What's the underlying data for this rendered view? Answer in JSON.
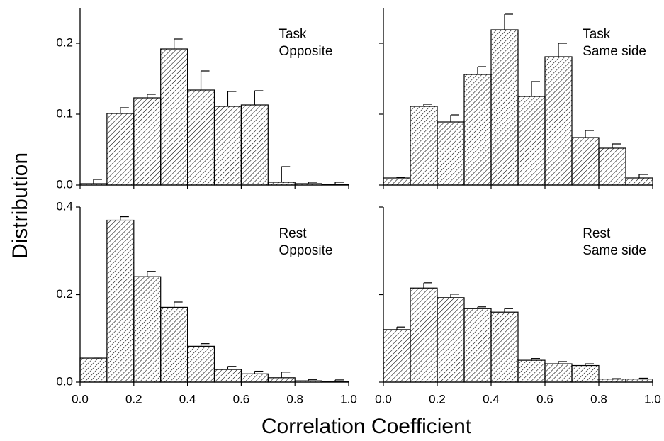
{
  "xlabel": "Correlation Coefficient",
  "ylabel": "Distribution",
  "chart_data": [
    {
      "type": "histogram",
      "annotation": [
        "Task",
        "Opposite"
      ],
      "bins": [
        0,
        0.1,
        0.2,
        0.3,
        0.4,
        0.5,
        0.6,
        0.7,
        0.8,
        0.9,
        1.0
      ],
      "values": [
        0.002,
        0.101,
        0.123,
        0.192,
        0.134,
        0.111,
        0.113,
        0.004,
        0.002,
        0.001
      ],
      "errors": [
        0.006,
        0.008,
        0.005,
        0.014,
        0.027,
        0.021,
        0.02,
        0.022,
        0.002,
        0.003
      ],
      "xlim": [
        0,
        1
      ],
      "ylim": [
        0,
        0.25
      ],
      "xticks": [
        {
          "value": 0,
          "label": "0.0"
        },
        0.2,
        0.4,
        0.6,
        0.8,
        {
          "value": 1,
          "label": "1.0"
        }
      ],
      "yticks": [
        {
          "value": 0,
          "label": "0.0"
        },
        0.1,
        0.2
      ],
      "show_xtick_labels": false,
      "show_ytick_labels": true
    },
    {
      "type": "histogram",
      "annotation": [
        "Task",
        "Same side"
      ],
      "bins": [
        0,
        0.1,
        0.2,
        0.3,
        0.4,
        0.5,
        0.6,
        0.7,
        0.8,
        0.9,
        1.0
      ],
      "values": [
        0.01,
        0.111,
        0.089,
        0.156,
        0.219,
        0.125,
        0.181,
        0.067,
        0.052,
        0.01
      ],
      "errors": [
        0.001,
        0.003,
        0.01,
        0.011,
        0.022,
        0.021,
        0.019,
        0.01,
        0.006,
        0.005
      ],
      "xlim": [
        0,
        1
      ],
      "ylim": [
        0,
        0.25
      ],
      "xticks": [
        {
          "value": 0,
          "label": "0.0"
        },
        0.2,
        0.4,
        0.6,
        0.8,
        {
          "value": 1,
          "label": "1.0"
        }
      ],
      "yticks": [
        {
          "value": 0,
          "label": "0.0"
        },
        0.1,
        0.2
      ],
      "show_xtick_labels": false,
      "show_ytick_labels": false
    },
    {
      "type": "histogram",
      "annotation": [
        "Rest",
        "Opposite"
      ],
      "bins": [
        0,
        0.1,
        0.2,
        0.3,
        0.4,
        0.5,
        0.6,
        0.7,
        0.8,
        0.9,
        1.0
      ],
      "values": [
        0.055,
        0.37,
        0.241,
        0.171,
        0.082,
        0.029,
        0.019,
        0.01,
        0.003,
        0.002
      ],
      "errors": [
        0,
        0.008,
        0.012,
        0.012,
        0.006,
        0.007,
        0.006,
        0.013,
        0.003,
        0.003
      ],
      "xlim": [
        0,
        1
      ],
      "ylim": [
        0,
        0.4
      ],
      "xticks": [
        {
          "value": 0,
          "label": "0.0"
        },
        0.2,
        0.4,
        0.6,
        0.8,
        {
          "value": 1,
          "label": "1.0"
        }
      ],
      "yticks": [
        {
          "value": 0,
          "label": "0.0"
        },
        0.2,
        0.4
      ],
      "show_xtick_labels": true,
      "show_ytick_labels": true
    },
    {
      "type": "histogram",
      "annotation": [
        "Rest",
        "Same side"
      ],
      "bins": [
        0,
        0.1,
        0.2,
        0.3,
        0.4,
        0.5,
        0.6,
        0.7,
        0.8,
        0.9,
        1.0
      ],
      "values": [
        0.12,
        0.215,
        0.193,
        0.168,
        0.16,
        0.05,
        0.042,
        0.038,
        0.007,
        0.007
      ],
      "errors": [
        0.006,
        0.012,
        0.008,
        0.004,
        0.008,
        0.004,
        0.005,
        0.004,
        0.001,
        0.002
      ],
      "xlim": [
        0,
        1
      ],
      "ylim": [
        0,
        0.4
      ],
      "xticks": [
        {
          "value": 0,
          "label": "0.0"
        },
        0.2,
        0.4,
        0.6,
        0.8,
        {
          "value": 1,
          "label": "1.0"
        }
      ],
      "yticks": [
        {
          "value": 0,
          "label": "0.0"
        },
        0.2,
        0.4
      ],
      "show_xtick_labels": true,
      "show_ytick_labels": false
    }
  ]
}
